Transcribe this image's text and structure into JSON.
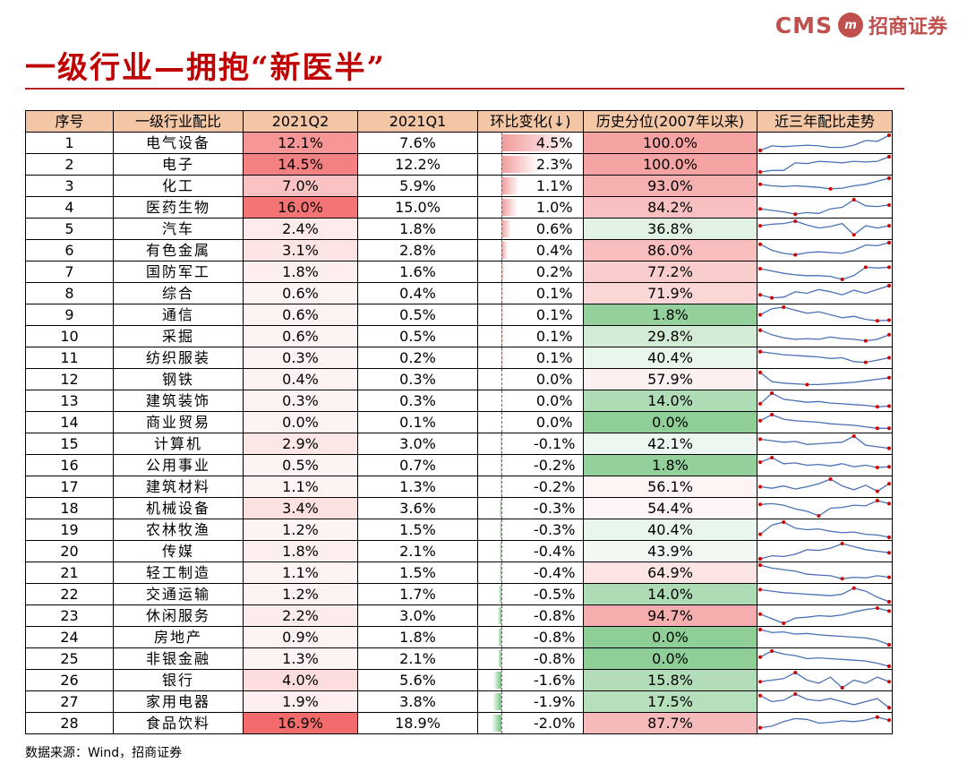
{
  "logo": {
    "latin": "CMS",
    "mark": "m",
    "chinese": "招商证券"
  },
  "title": "一级行业—拥抱“新医半”",
  "source": "数据来源：Wind，招商证券",
  "table": {
    "headers": [
      "序号",
      "一级行业配比",
      "2021Q2",
      "2021Q1",
      "环比变化(↓)",
      "历史分位(2007年以来)",
      "近三年配比走势"
    ],
    "rows": [
      {
        "no": "1",
        "industry": "电气设备",
        "q2": "12.1%",
        "q1": "7.6%",
        "chg": "4.5%",
        "chgv": 4.5,
        "pct": "100.0%",
        "pctv": 100.0,
        "q2v": 12.1
      },
      {
        "no": "2",
        "industry": "电子",
        "q2": "14.5%",
        "q1": "12.2%",
        "chg": "2.3%",
        "chgv": 2.3,
        "pct": "100.0%",
        "pctv": 100.0,
        "q2v": 14.5
      },
      {
        "no": "3",
        "industry": "化工",
        "q2": "7.0%",
        "q1": "5.9%",
        "chg": "1.1%",
        "chgv": 1.1,
        "pct": "93.0%",
        "pctv": 93.0,
        "q2v": 7.0
      },
      {
        "no": "4",
        "industry": "医药生物",
        "q2": "16.0%",
        "q1": "15.0%",
        "chg": "1.0%",
        "chgv": 1.0,
        "pct": "84.2%",
        "pctv": 84.2,
        "q2v": 16.0
      },
      {
        "no": "5",
        "industry": "汽车",
        "q2": "2.4%",
        "q1": "1.8%",
        "chg": "0.6%",
        "chgv": 0.6,
        "pct": "36.8%",
        "pctv": 36.8,
        "q2v": 2.4
      },
      {
        "no": "6",
        "industry": "有色金属",
        "q2": "3.1%",
        "q1": "2.8%",
        "chg": "0.4%",
        "chgv": 0.4,
        "pct": "86.0%",
        "pctv": 86.0,
        "q2v": 3.1
      },
      {
        "no": "7",
        "industry": "国防军工",
        "q2": "1.8%",
        "q1": "1.6%",
        "chg": "0.2%",
        "chgv": 0.2,
        "pct": "77.2%",
        "pctv": 77.2,
        "q2v": 1.8
      },
      {
        "no": "8",
        "industry": "综合",
        "q2": "0.6%",
        "q1": "0.4%",
        "chg": "0.1%",
        "chgv": 0.1,
        "pct": "71.9%",
        "pctv": 71.9,
        "q2v": 0.6
      },
      {
        "no": "9",
        "industry": "通信",
        "q2": "0.6%",
        "q1": "0.5%",
        "chg": "0.1%",
        "chgv": 0.1,
        "pct": "1.8%",
        "pctv": 1.8,
        "q2v": 0.6
      },
      {
        "no": "10",
        "industry": "采掘",
        "q2": "0.6%",
        "q1": "0.5%",
        "chg": "0.1%",
        "chgv": 0.1,
        "pct": "29.8%",
        "pctv": 29.8,
        "q2v": 0.6
      },
      {
        "no": "11",
        "industry": "纺织服装",
        "q2": "0.3%",
        "q1": "0.2%",
        "chg": "0.1%",
        "chgv": 0.1,
        "pct": "40.4%",
        "pctv": 40.4,
        "q2v": 0.3
      },
      {
        "no": "12",
        "industry": "钢铁",
        "q2": "0.4%",
        "q1": "0.3%",
        "chg": "0.0%",
        "chgv": 0.0,
        "pct": "57.9%",
        "pctv": 57.9,
        "q2v": 0.4
      },
      {
        "no": "13",
        "industry": "建筑装饰",
        "q2": "0.3%",
        "q1": "0.3%",
        "chg": "0.0%",
        "chgv": 0.0,
        "pct": "14.0%",
        "pctv": 14.0,
        "q2v": 0.3
      },
      {
        "no": "14",
        "industry": "商业贸易",
        "q2": "0.0%",
        "q1": "0.1%",
        "chg": "0.0%",
        "chgv": 0.0,
        "pct": "0.0%",
        "pctv": 0.0,
        "q2v": 0.0
      },
      {
        "no": "15",
        "industry": "计算机",
        "q2": "2.9%",
        "q1": "3.0%",
        "chg": "-0.1%",
        "chgv": -0.1,
        "pct": "42.1%",
        "pctv": 42.1,
        "q2v": 2.9
      },
      {
        "no": "16",
        "industry": "公用事业",
        "q2": "0.5%",
        "q1": "0.7%",
        "chg": "-0.2%",
        "chgv": -0.2,
        "pct": "1.8%",
        "pctv": 1.8,
        "q2v": 0.5
      },
      {
        "no": "17",
        "industry": "建筑材料",
        "q2": "1.1%",
        "q1": "1.3%",
        "chg": "-0.2%",
        "chgv": -0.2,
        "pct": "56.1%",
        "pctv": 56.1,
        "q2v": 1.1
      },
      {
        "no": "18",
        "industry": "机械设备",
        "q2": "3.4%",
        "q1": "3.6%",
        "chg": "-0.3%",
        "chgv": -0.3,
        "pct": "54.4%",
        "pctv": 54.4,
        "q2v": 3.4
      },
      {
        "no": "19",
        "industry": "农林牧渔",
        "q2": "1.2%",
        "q1": "1.5%",
        "chg": "-0.3%",
        "chgv": -0.3,
        "pct": "40.4%",
        "pctv": 40.4,
        "q2v": 1.2
      },
      {
        "no": "20",
        "industry": "传媒",
        "q2": "1.8%",
        "q1": "2.1%",
        "chg": "-0.4%",
        "chgv": -0.4,
        "pct": "43.9%",
        "pctv": 43.9,
        "q2v": 1.8
      },
      {
        "no": "21",
        "industry": "轻工制造",
        "q2": "1.1%",
        "q1": "1.5%",
        "chg": "-0.4%",
        "chgv": -0.4,
        "pct": "64.9%",
        "pctv": 64.9,
        "q2v": 1.1
      },
      {
        "no": "22",
        "industry": "交通运输",
        "q2": "1.2%",
        "q1": "1.7%",
        "chg": "-0.5%",
        "chgv": -0.5,
        "pct": "14.0%",
        "pctv": 14.0,
        "q2v": 1.2
      },
      {
        "no": "23",
        "industry": "休闲服务",
        "q2": "2.2%",
        "q1": "3.0%",
        "chg": "-0.8%",
        "chgv": -0.8,
        "pct": "94.7%",
        "pctv": 94.7,
        "q2v": 2.2
      },
      {
        "no": "24",
        "industry": "房地产",
        "q2": "0.9%",
        "q1": "1.8%",
        "chg": "-0.8%",
        "chgv": -0.8,
        "pct": "0.0%",
        "pctv": 0.0,
        "q2v": 0.9
      },
      {
        "no": "25",
        "industry": "非银金融",
        "q2": "1.3%",
        "q1": "2.1%",
        "chg": "-0.8%",
        "chgv": -0.8,
        "pct": "0.0%",
        "pctv": 0.0,
        "q2v": 1.3
      },
      {
        "no": "26",
        "industry": "银行",
        "q2": "4.0%",
        "q1": "5.6%",
        "chg": "-1.6%",
        "chgv": -1.6,
        "pct": "15.8%",
        "pctv": 15.8,
        "q2v": 4.0
      },
      {
        "no": "27",
        "industry": "家用电器",
        "q2": "1.9%",
        "q1": "3.8%",
        "chg": "-1.9%",
        "chgv": -1.9,
        "pct": "17.5%",
        "pctv": 17.5,
        "q2v": 1.9
      },
      {
        "no": "28",
        "industry": "食品饮料",
        "q2": "16.9%",
        "q1": "18.9%",
        "chg": "-2.0%",
        "chgv": -2.0,
        "pct": "87.7%",
        "pctv": 87.7,
        "q2v": 16.9
      }
    ],
    "trends": [
      [
        0.0,
        0.3,
        0.25,
        0.3,
        0.35,
        0.3,
        0.2,
        0.2,
        0.35,
        0.65,
        0.6,
        1.0
      ],
      [
        0.0,
        0.1,
        0.1,
        0.6,
        0.55,
        0.7,
        0.65,
        0.6,
        0.7,
        0.65,
        0.7,
        1.0
      ],
      [
        0.6,
        0.5,
        0.45,
        0.5,
        0.45,
        0.4,
        0.3,
        0.35,
        0.5,
        0.6,
        0.8,
        1.0
      ],
      [
        0.4,
        0.3,
        0.2,
        0.05,
        0.15,
        0.1,
        0.4,
        0.5,
        1.0,
        0.6,
        0.55,
        0.65
      ],
      [
        0.7,
        0.8,
        0.85,
        1.0,
        0.75,
        0.55,
        0.65,
        0.85,
        0.1,
        0.7,
        0.55,
        0.7
      ],
      [
        0.9,
        0.5,
        0.3,
        0.2,
        0.35,
        0.4,
        0.35,
        0.3,
        0.5,
        0.85,
        0.8,
        1.0
      ],
      [
        0.7,
        0.55,
        0.4,
        0.3,
        0.25,
        0.25,
        0.2,
        0.0,
        0.25,
        0.8,
        0.75,
        0.8
      ],
      [
        0.4,
        0.2,
        0.25,
        0.6,
        0.5,
        0.75,
        0.6,
        0.4,
        0.7,
        0.5,
        0.75,
        1.0
      ],
      [
        0.5,
        0.9,
        1.0,
        0.8,
        0.6,
        0.7,
        0.5,
        0.3,
        0.4,
        0.2,
        0.1,
        0.15
      ],
      [
        0.9,
        0.6,
        0.4,
        0.3,
        0.35,
        0.3,
        0.45,
        0.35,
        0.3,
        0.2,
        0.3,
        0.6
      ],
      [
        0.9,
        0.8,
        0.7,
        0.65,
        0.6,
        0.55,
        0.45,
        0.5,
        0.25,
        0.2,
        0.35,
        0.5
      ],
      [
        0.95,
        0.35,
        0.25,
        0.2,
        0.15,
        0.15,
        0.2,
        0.25,
        0.3,
        0.4,
        0.5,
        0.6
      ],
      [
        0.3,
        1.0,
        0.6,
        0.5,
        0.4,
        0.45,
        0.35,
        0.3,
        0.25,
        0.2,
        0.1,
        0.15
      ],
      [
        0.6,
        1.0,
        0.7,
        0.6,
        0.55,
        0.5,
        0.4,
        0.35,
        0.3,
        0.2,
        0.1,
        0.1
      ],
      [
        0.8,
        0.7,
        0.6,
        0.65,
        0.45,
        0.5,
        0.55,
        0.6,
        1.0,
        0.4,
        0.3,
        0.2
      ],
      [
        0.7,
        1.0,
        0.6,
        0.65,
        0.5,
        0.55,
        0.45,
        0.6,
        0.4,
        0.5,
        0.35,
        0.4
      ],
      [
        0.5,
        0.4,
        0.55,
        0.35,
        0.5,
        0.7,
        1.0,
        0.55,
        0.3,
        0.6,
        0.2,
        0.7
      ],
      [
        0.75,
        0.8,
        0.7,
        0.45,
        0.3,
        0.0,
        0.5,
        0.55,
        0.7,
        0.65,
        1.0,
        0.8
      ],
      [
        0.2,
        0.8,
        1.0,
        0.6,
        0.5,
        0.55,
        0.4,
        0.3,
        0.35,
        0.2,
        0.15,
        0.0
      ],
      [
        0.0,
        0.2,
        0.15,
        0.3,
        0.6,
        0.55,
        0.7,
        1.0,
        0.8,
        0.6,
        0.5,
        0.4
      ],
      [
        1.0,
        0.8,
        0.7,
        0.6,
        0.4,
        0.35,
        0.3,
        0.1,
        0.2,
        0.15,
        0.3,
        0.2
      ],
      [
        0.8,
        0.7,
        0.6,
        0.55,
        0.5,
        0.45,
        0.4,
        0.5,
        0.9,
        0.7,
        0.3,
        0.0
      ],
      [
        0.6,
        0.3,
        0.0,
        0.35,
        0.4,
        0.5,
        0.45,
        0.55,
        0.75,
        0.9,
        1.0,
        0.8
      ],
      [
        1.0,
        0.8,
        0.85,
        0.7,
        0.75,
        0.65,
        0.6,
        0.55,
        0.5,
        0.45,
        0.3,
        0.0
      ],
      [
        0.6,
        1.0,
        0.8,
        0.7,
        0.5,
        0.55,
        0.5,
        0.45,
        0.4,
        0.35,
        0.2,
        0.0
      ],
      [
        0.4,
        0.5,
        0.6,
        1.0,
        0.5,
        0.3,
        0.7,
        0.0,
        0.5,
        0.3,
        0.7,
        0.4
      ],
      [
        0.9,
        0.5,
        0.6,
        1.0,
        0.65,
        0.55,
        0.7,
        0.5,
        0.3,
        0.5,
        0.7,
        0.1
      ],
      [
        0.2,
        0.3,
        0.6,
        0.8,
        0.75,
        0.5,
        0.55,
        0.65,
        0.6,
        0.7,
        0.9,
        0.7
      ]
    ]
  },
  "colors": {
    "title": "#c00000",
    "header_bg": "#f3c6a6",
    "high": "#f26b6b",
    "low": "#6cc17a",
    "trend_line": "#4a72b8",
    "trend_dot": "#d00000"
  }
}
